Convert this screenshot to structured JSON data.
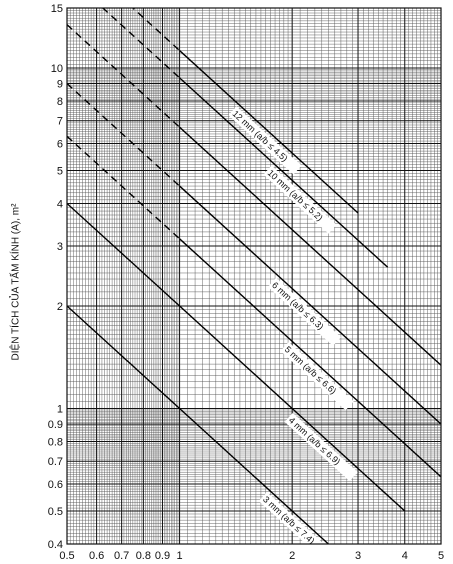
{
  "chart_data": {
    "type": "line",
    "x_scale": "log",
    "y_scale": "log",
    "xlim": [
      0.5,
      5
    ],
    "ylim": [
      0.4,
      15
    ],
    "grid": true,
    "ylabel": "DIỆN TÍCH CỦA TẤM KÍNH (A), m²",
    "xticks": [
      {
        "value": 0.5,
        "label": "0.5"
      },
      {
        "value": 0.6,
        "label": "0.6"
      },
      {
        "value": 0.7,
        "label": "0.7"
      },
      {
        "value": 0.8,
        "label": "0.8"
      },
      {
        "value": 0.9,
        "label": "0.9"
      },
      {
        "value": 1,
        "label": "1"
      },
      {
        "value": 2,
        "label": "2"
      },
      {
        "value": 3,
        "label": "3"
      },
      {
        "value": 4,
        "label": "4"
      },
      {
        "value": 5,
        "label": "5"
      }
    ],
    "yticks": [
      {
        "value": 0.4,
        "label": "0.4"
      },
      {
        "value": 0.5,
        "label": "0.5"
      },
      {
        "value": 0.6,
        "label": "0.6"
      },
      {
        "value": 0.7,
        "label": "0.7"
      },
      {
        "value": 0.8,
        "label": "0.8"
      },
      {
        "value": 0.9,
        "label": "0.9"
      },
      {
        "value": 1,
        "label": "1"
      },
      {
        "value": 2,
        "label": "2"
      },
      {
        "value": 3,
        "label": "3"
      },
      {
        "value": 4,
        "label": "4"
      },
      {
        "value": 5,
        "label": "5"
      },
      {
        "value": 6,
        "label": "6"
      },
      {
        "value": 7,
        "label": "7"
      },
      {
        "value": 8,
        "label": "8"
      },
      {
        "value": 9,
        "label": "9"
      },
      {
        "value": 10,
        "label": "10"
      },
      {
        "value": 15,
        "label": "15"
      }
    ],
    "series": [
      {
        "name": "12 mm (a/b ≤ 4.5)",
        "x": [
          0.5,
          3.0
        ],
        "y": [
          22.5,
          3.75
        ],
        "style": "dashed-solid",
        "solid_from_x": 1.0
      },
      {
        "name": "10 mm (a/b ≤ 5.2)",
        "x": [
          0.5,
          3.6
        ],
        "y": [
          18.7,
          2.6
        ],
        "style": "dashed-solid",
        "solid_from_x": 1.0
      },
      {
        "name": "",
        "x": [
          0.5,
          5.0
        ],
        "y": [
          13.4,
          1.34
        ],
        "style": "dashed-solid",
        "solid_from_x": 1.0
      },
      {
        "name": "6 mm (a/b ≤ 6.3)",
        "x": [
          0.5,
          5.0
        ],
        "y": [
          9.0,
          0.9
        ],
        "style": "dashed-solid",
        "solid_from_x": 1.0
      },
      {
        "name": "5 mm (a/b ≤ 6.6)",
        "x": [
          0.5,
          5.0
        ],
        "y": [
          6.3,
          0.63
        ],
        "style": "dashed-solid",
        "solid_from_x": 1.0
      },
      {
        "name": "4 mm (a/b ≤ 6.9)",
        "x": [
          0.5,
          4.0
        ],
        "y": [
          4.0,
          0.5
        ],
        "style": "solid"
      },
      {
        "name": "3 mm (a/b ≤ 7.4)",
        "x": [
          0.5,
          2.5
        ],
        "y": [
          2.0,
          0.4
        ],
        "style": "solid"
      }
    ]
  }
}
